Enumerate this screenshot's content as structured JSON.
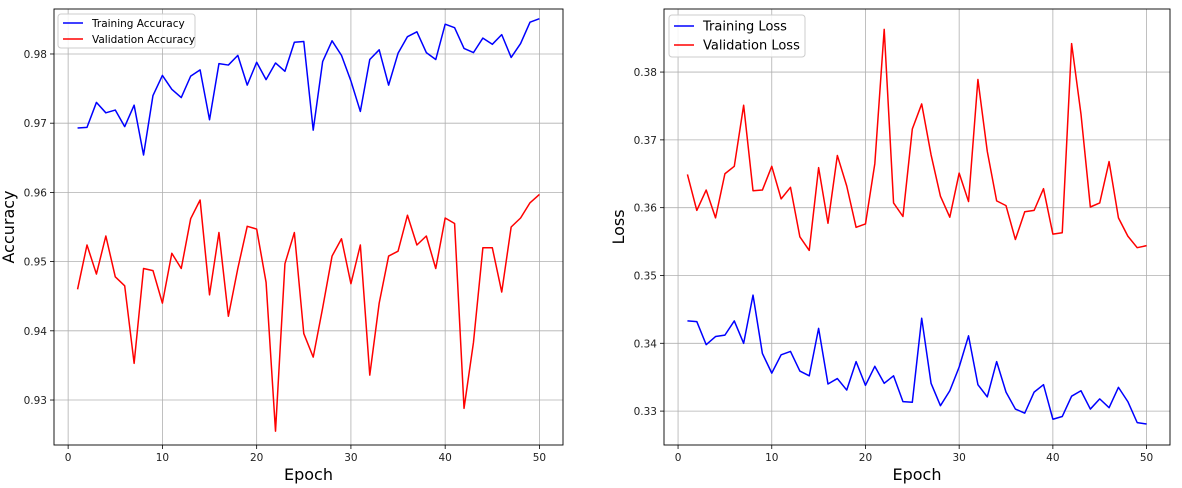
{
  "chart_data": [
    {
      "type": "line",
      "xlabel": "Epoch",
      "ylabel": "Accuracy",
      "xlim": [
        -1.5,
        52.5
      ],
      "ylim": [
        0.9235,
        0.9865
      ],
      "xticks": [
        0,
        10,
        20,
        30,
        40,
        50
      ],
      "yticks": [
        0.93,
        0.94,
        0.95,
        0.96,
        0.97,
        0.98
      ],
      "ytick_labels": [
        "0.93",
        "0.94",
        "0.95",
        "0.96",
        "0.97",
        "0.98"
      ],
      "grid": true,
      "legend": "upper left",
      "x": [
        1,
        2,
        3,
        4,
        5,
        6,
        7,
        8,
        9,
        10,
        11,
        12,
        13,
        14,
        15,
        16,
        17,
        18,
        19,
        20,
        21,
        22,
        23,
        24,
        25,
        26,
        27,
        28,
        29,
        30,
        31,
        32,
        33,
        34,
        35,
        36,
        37,
        38,
        39,
        40,
        41,
        42,
        43,
        44,
        45,
        46,
        47,
        48,
        49,
        50
      ],
      "series": [
        {
          "name": "Training Accuracy",
          "color": "#0000ff",
          "values": [
            0.9693,
            0.9694,
            0.973,
            0.9715,
            0.9719,
            0.9695,
            0.9726,
            0.9654,
            0.974,
            0.9769,
            0.9749,
            0.9737,
            0.9768,
            0.9777,
            0.9705,
            0.9786,
            0.9784,
            0.9798,
            0.9755,
            0.9788,
            0.9763,
            0.9787,
            0.9775,
            0.9817,
            0.9818,
            0.969,
            0.9789,
            0.9819,
            0.9798,
            0.9761,
            0.9717,
            0.9792,
            0.9806,
            0.9755,
            0.9801,
            0.9825,
            0.9832,
            0.9802,
            0.9792,
            0.9843,
            0.9838,
            0.9808,
            0.9802,
            0.9823,
            0.9814,
            0.9828,
            0.9795,
            0.9815,
            0.9846,
            0.9851
          ]
        },
        {
          "name": "Validation Accuracy",
          "color": "#ff0000",
          "values": [
            0.946,
            0.9524,
            0.9482,
            0.9537,
            0.9478,
            0.9465,
            0.9353,
            0.949,
            0.9487,
            0.944,
            0.9512,
            0.949,
            0.9562,
            0.9589,
            0.9452,
            0.9542,
            0.9421,
            0.949,
            0.9551,
            0.9547,
            0.947,
            0.9255,
            0.9497,
            0.9542,
            0.9396,
            0.9362,
            0.9433,
            0.9508,
            0.9533,
            0.9468,
            0.9524,
            0.9336,
            0.944,
            0.9508,
            0.9515,
            0.9567,
            0.9524,
            0.9537,
            0.949,
            0.9563,
            0.9555,
            0.9288,
            0.9383,
            0.952,
            0.952,
            0.9456,
            0.955,
            0.9563,
            0.9585,
            0.9597
          ]
        }
      ]
    },
    {
      "type": "line",
      "xlabel": "Epoch",
      "ylabel": "Loss",
      "xlim": [
        -1.5,
        52.5
      ],
      "ylim": [
        0.325,
        0.3893
      ],
      "xticks": [
        0,
        10,
        20,
        30,
        40,
        50
      ],
      "yticks": [
        0.33,
        0.34,
        0.35,
        0.36,
        0.37,
        0.38
      ],
      "ytick_labels": [
        "0.33",
        "0.34",
        "0.35",
        "0.36",
        "0.37",
        "0.38"
      ],
      "grid": true,
      "legend": "upper left",
      "x": [
        1,
        2,
        3,
        4,
        5,
        6,
        7,
        8,
        9,
        10,
        11,
        12,
        13,
        14,
        15,
        16,
        17,
        18,
        19,
        20,
        21,
        22,
        23,
        24,
        25,
        26,
        27,
        28,
        29,
        30,
        31,
        32,
        33,
        34,
        35,
        36,
        37,
        38,
        39,
        40,
        41,
        42,
        43,
        44,
        45,
        46,
        47,
        48,
        49,
        50
      ],
      "series": [
        {
          "name": "Training Loss",
          "color": "#0000ff",
          "values": [
            0.3433,
            0.3432,
            0.3398,
            0.341,
            0.3412,
            0.3433,
            0.34,
            0.3471,
            0.3385,
            0.3356,
            0.3383,
            0.3388,
            0.3359,
            0.3352,
            0.3422,
            0.334,
            0.3348,
            0.3331,
            0.3373,
            0.3338,
            0.3366,
            0.3341,
            0.3352,
            0.3314,
            0.3313,
            0.3437,
            0.3341,
            0.3308,
            0.333,
            0.3365,
            0.3411,
            0.3339,
            0.3321,
            0.3373,
            0.3328,
            0.3303,
            0.3297,
            0.3328,
            0.3339,
            0.3288,
            0.3292,
            0.3322,
            0.333,
            0.3303,
            0.3318,
            0.3305,
            0.3335,
            0.3314,
            0.3283,
            0.3281
          ]
        },
        {
          "name": "Validation Loss",
          "color": "#ff0000",
          "values": [
            0.3649,
            0.3596,
            0.3626,
            0.3585,
            0.365,
            0.3661,
            0.3751,
            0.3625,
            0.3626,
            0.3661,
            0.3613,
            0.363,
            0.3557,
            0.3537,
            0.3659,
            0.3577,
            0.3677,
            0.3632,
            0.3571,
            0.3576,
            0.3665,
            0.3863,
            0.3607,
            0.3587,
            0.3716,
            0.3753,
            0.3678,
            0.3617,
            0.3586,
            0.3651,
            0.3609,
            0.3789,
            0.3683,
            0.361,
            0.3603,
            0.3553,
            0.3594,
            0.3596,
            0.3628,
            0.3561,
            0.3563,
            0.3842,
            0.3738,
            0.3601,
            0.3607,
            0.3668,
            0.3585,
            0.3558,
            0.3541,
            0.3544
          ]
        }
      ]
    }
  ]
}
